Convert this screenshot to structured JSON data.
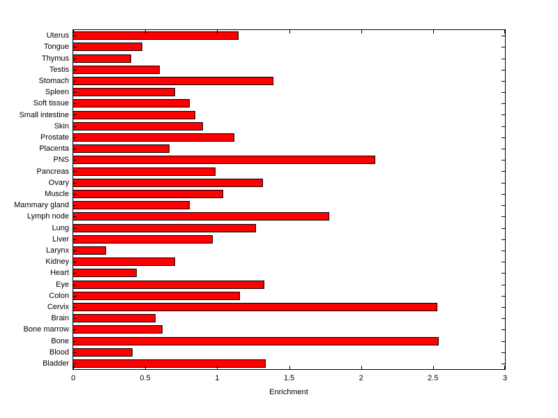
{
  "chart_data": {
    "type": "bar",
    "orientation": "horizontal",
    "title": "",
    "xlabel": "Enrichment",
    "ylabel": "",
    "xlim": [
      0,
      3
    ],
    "xticks": [
      0,
      0.5,
      1,
      1.5,
      2,
      2.5,
      3
    ],
    "xtick_labels": [
      "0",
      "0.5",
      "1",
      "1.5",
      "2",
      "2.5",
      "3"
    ],
    "grid": false,
    "legend": "none",
    "bar_color": "#ff0000",
    "bar_edge_color": "#000000",
    "categories_top_to_bottom": [
      "Uterus",
      "Tongue",
      "Thymus",
      "Testis",
      "Stomach",
      "Spleen",
      "Soft tissue",
      "Small intestine",
      "Skin",
      "Prostate",
      "Placenta",
      "PNS",
      "Pancreas",
      "Ovary",
      "Muscle",
      "Mammary gland",
      "Lymph node",
      "Lung",
      "Liver",
      "Larynx",
      "Kidney",
      "Heart",
      "Eye",
      "Colon",
      "Cervix",
      "Brain",
      "Bone marrow",
      "Bone",
      "Blood",
      "Bladder"
    ],
    "values": [
      1.15,
      0.48,
      0.4,
      0.6,
      1.39,
      0.71,
      0.81,
      0.85,
      0.9,
      1.12,
      0.67,
      2.1,
      0.99,
      1.32,
      1.04,
      0.81,
      1.78,
      1.27,
      0.97,
      0.23,
      0.71,
      0.44,
      1.33,
      1.16,
      2.53,
      0.57,
      0.62,
      2.54,
      0.41,
      1.34
    ]
  }
}
